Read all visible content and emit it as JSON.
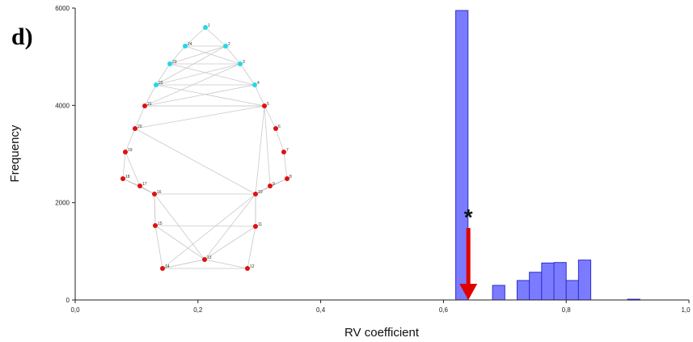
{
  "panel_label": "d)",
  "chart_data": {
    "type": "bar",
    "xlabel": "RV coefficient",
    "ylabel": "Frequency",
    "xlim": [
      0.0,
      1.0
    ],
    "ylim": [
      0,
      6000
    ],
    "x_ticks": [
      "0,0",
      "0,2",
      "0,4",
      "0,6",
      "0,8",
      "1,0"
    ],
    "y_ticks": [
      "0",
      "2000",
      "4000",
      "6000"
    ],
    "bin_width": 0.02,
    "bars": [
      {
        "x": 0.63,
        "value": 5950
      },
      {
        "x": 0.69,
        "value": 300
      },
      {
        "x": 0.73,
        "value": 400
      },
      {
        "x": 0.75,
        "value": 570
      },
      {
        "x": 0.77,
        "value": 760
      },
      {
        "x": 0.79,
        "value": 770
      },
      {
        "x": 0.81,
        "value": 400
      },
      {
        "x": 0.83,
        "value": 820
      },
      {
        "x": 0.91,
        "value": 15
      }
    ],
    "bar_color": "#7b7bff",
    "bar_edge_color": "#2f2fd0",
    "annotation": {
      "text": "*",
      "x": 0.63,
      "arrow_from": 1480,
      "arrow_to": 0,
      "arrow_color": "#e00000"
    },
    "grid": false
  },
  "inset": {
    "landmarks": [
      {
        "id": "1",
        "c": "cyan"
      },
      {
        "id": "2",
        "c": "cyan"
      },
      {
        "id": "3",
        "c": "cyan"
      },
      {
        "id": "4",
        "c": "cyan"
      },
      {
        "id": "5",
        "c": "red"
      },
      {
        "id": "6",
        "c": "red"
      },
      {
        "id": "7",
        "c": "red"
      },
      {
        "id": "8",
        "c": "red"
      },
      {
        "id": "9",
        "c": "red"
      },
      {
        "id": "10",
        "c": "red"
      },
      {
        "id": "11",
        "c": "red"
      },
      {
        "id": "12",
        "c": "red"
      },
      {
        "id": "13",
        "c": "red"
      },
      {
        "id": "14",
        "c": "red"
      },
      {
        "id": "15",
        "c": "red"
      },
      {
        "id": "16",
        "c": "red"
      },
      {
        "id": "17",
        "c": "red"
      },
      {
        "id": "18",
        "c": "red"
      },
      {
        "id": "19",
        "c": "red"
      },
      {
        "id": "20",
        "c": "red"
      },
      {
        "id": "21",
        "c": "red"
      },
      {
        "id": "22",
        "c": "cyan"
      },
      {
        "id": "23",
        "c": "cyan"
      },
      {
        "id": "24",
        "c": "cyan"
      }
    ],
    "colors": {
      "cyan": "#22d8e8",
      "red": "#e01010",
      "line": "#c8c8c8"
    }
  }
}
